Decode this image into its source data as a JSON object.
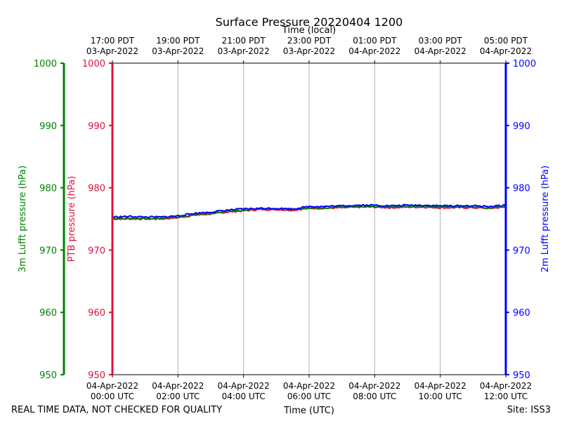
{
  "chart_data": {
    "type": "line",
    "title": "Surface Pressure 20220404 1200",
    "xlabel_bottom": "Time (UTC)",
    "xlabel_top": "Time (local)",
    "xlim_hours_utc": [
      0,
      12
    ],
    "x_ticks_bottom": [
      {
        "hour": 0,
        "line1": "04-Apr-2022",
        "line2": "00:00 UTC"
      },
      {
        "hour": 2,
        "line1": "04-Apr-2022",
        "line2": "02:00 UTC"
      },
      {
        "hour": 4,
        "line1": "04-Apr-2022",
        "line2": "04:00 UTC"
      },
      {
        "hour": 6,
        "line1": "04-Apr-2022",
        "line2": "06:00 UTC"
      },
      {
        "hour": 8,
        "line1": "04-Apr-2022",
        "line2": "08:00 UTC"
      },
      {
        "hour": 10,
        "line1": "04-Apr-2022",
        "line2": "10:00 UTC"
      },
      {
        "hour": 12,
        "line1": "04-Apr-2022",
        "line2": "12:00 UTC"
      }
    ],
    "x_ticks_top": [
      {
        "hour": 0,
        "line1": "17:00 PDT",
        "line2": "03-Apr-2022"
      },
      {
        "hour": 2,
        "line1": "19:00 PDT",
        "line2": "03-Apr-2022"
      },
      {
        "hour": 4,
        "line1": "21:00 PDT",
        "line2": "03-Apr-2022"
      },
      {
        "hour": 6,
        "line1": "23:00 PDT",
        "line2": "03-Apr-2022"
      },
      {
        "hour": 8,
        "line1": "01:00 PDT",
        "line2": "04-Apr-2022"
      },
      {
        "hour": 10,
        "line1": "03:00 PDT",
        "line2": "04-Apr-2022"
      },
      {
        "hour": 12,
        "line1": "05:00 PDT",
        "line2": "04-Apr-2022"
      }
    ],
    "ylim": [
      950,
      1000
    ],
    "y_ticks": [
      950,
      960,
      970,
      980,
      990,
      1000
    ],
    "grid_x": true,
    "grid_y": false,
    "axes": [
      {
        "label": "3m Lufft pressure (hPa)",
        "color": "#008000",
        "side": "far-left"
      },
      {
        "label": "PTB pressure (hPa)",
        "color": "#dc143c",
        "side": "left"
      },
      {
        "label": "2m Lufft pressure (hPa)",
        "color": "#0000ff",
        "side": "right"
      }
    ],
    "series": [
      {
        "color": "#dc143c",
        "x": [
          0,
          0.5,
          1,
          1.5,
          2,
          2.5,
          3,
          3.5,
          4,
          4.5,
          5,
          5.5,
          6,
          6.5,
          7,
          7.5,
          8,
          8.5,
          9,
          9.5,
          10,
          10.5,
          11,
          11.5,
          12
        ],
        "y": [
          975.0,
          975.0,
          975.0,
          975.0,
          975.2,
          975.6,
          975.8,
          976.1,
          976.3,
          976.5,
          976.5,
          976.4,
          976.7,
          976.7,
          976.8,
          976.9,
          976.9,
          976.8,
          976.9,
          976.9,
          976.8,
          976.8,
          976.8,
          976.7,
          976.9
        ]
      },
      {
        "color": "#008000",
        "x": [
          0,
          0.5,
          1,
          1.5,
          2,
          2.5,
          3,
          3.5,
          4,
          4.5,
          5,
          5.5,
          6,
          6.5,
          7,
          7.5,
          8,
          8.5,
          9,
          9.5,
          10,
          10.5,
          11,
          11.5,
          12
        ],
        "y": [
          975.1,
          975.1,
          975.1,
          975.1,
          975.3,
          975.7,
          975.9,
          976.2,
          976.4,
          976.6,
          976.6,
          976.5,
          976.8,
          976.8,
          976.9,
          977.0,
          977.0,
          976.9,
          977.0,
          977.0,
          976.9,
          976.9,
          976.9,
          976.8,
          977.0
        ]
      },
      {
        "color": "#0000ff",
        "x": [
          0,
          0.5,
          1,
          1.5,
          2,
          2.5,
          3,
          3.5,
          4,
          4.5,
          5,
          5.5,
          6,
          6.5,
          7,
          7.5,
          8,
          8.5,
          9,
          9.5,
          10,
          10.5,
          11,
          11.5,
          12
        ],
        "y": [
          975.3,
          975.4,
          975.3,
          975.3,
          975.5,
          975.9,
          976.1,
          976.4,
          976.6,
          976.7,
          976.7,
          976.6,
          977.0,
          977.0,
          977.1,
          977.2,
          977.2,
          977.1,
          977.2,
          977.2,
          977.1,
          977.1,
          977.1,
          977.0,
          977.2
        ]
      }
    ]
  },
  "footer": {
    "quality_note": "REAL TIME DATA, NOT CHECKED FOR QUALITY",
    "site": "Site: ISS3"
  }
}
